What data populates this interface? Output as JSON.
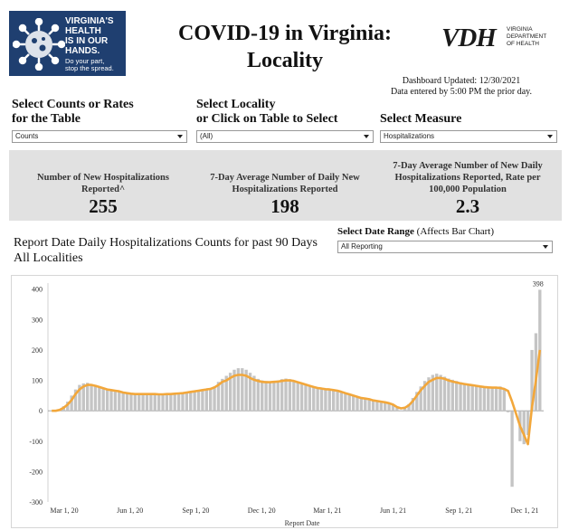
{
  "header": {
    "logo_lines": [
      "VIRGINIA'S",
      "HEALTH",
      "IS IN OUR",
      "HANDS."
    ],
    "logo_sub": [
      "Do your part,",
      "stop the spread."
    ],
    "title_lines": [
      "COVID-19 in Virginia:",
      "Locality"
    ],
    "vdh_mark": "VDH",
    "vdh_dept": [
      "VIRGINIA",
      "DEPARTMENT",
      "OF HEALTH"
    ],
    "updated_line1": "Dashboard Updated: 12/30/2021",
    "updated_line2": "Data entered by 5:00 PM the prior day."
  },
  "controls": {
    "counts_label": [
      "Select Counts or Rates",
      "for the Table"
    ],
    "counts_value": "Counts",
    "locality_label": [
      "Select Locality",
      "or Click on Table to Select"
    ],
    "locality_value": "(All)",
    "measure_label": "Select Measure",
    "measure_value": "Hospitalizations",
    "range_label_bold": "Select Date Range",
    "range_label_rest": " (Affects Bar Chart)",
    "range_value": "All Reporting"
  },
  "kpis": [
    {
      "label": [
        "Number of New Hospitalizations",
        "Reported^"
      ],
      "value": "255"
    },
    {
      "label": [
        "7-Day Average Number of Daily New",
        "Hospitalizations Reported"
      ],
      "value": "198"
    },
    {
      "label": [
        "7-Day Average Number of New Daily",
        "Hospitalizations Reported, Rate per",
        "100,000 Population"
      ],
      "value": "2.3"
    }
  ],
  "chart_title": [
    "Report Date Daily Hospitalizations Counts for past 90 Days",
    "All Localities"
  ],
  "colors": {
    "bars": "#c4c4c4",
    "line": "#f2a73b",
    "kpi_band": "#e1e1e1",
    "logo_bg": "#1f3f70"
  },
  "chart_data": {
    "type": "bar",
    "xlabel": "Report Date",
    "ylabel": "",
    "ylim": [
      -300,
      420
    ],
    "yticks": [
      -300,
      -200,
      -100,
      0,
      100,
      200,
      300,
      400
    ],
    "xticks": [
      "Mar 1, 20",
      "Jun 1, 20",
      "Sep 1, 20",
      "Dec 1, 20",
      "Mar 1, 21",
      "Jun 1, 21",
      "Sep 1, 21",
      "Dec 1, 21"
    ],
    "peak_label": "398",
    "series": [
      {
        "values": [
          0,
          0,
          5,
          15,
          30,
          50,
          70,
          85,
          90,
          92,
          88,
          85,
          80,
          75,
          72,
          70,
          68,
          66,
          60,
          58,
          56,
          55,
          55,
          55,
          55,
          55,
          55,
          54,
          54,
          55,
          55,
          56,
          57,
          58,
          60,
          62,
          65,
          68,
          70,
          72,
          75,
          80,
          95,
          105,
          115,
          125,
          135,
          140,
          140,
          135,
          125,
          115,
          105,
          100,
          98,
          95,
          98,
          100,
          104,
          106,
          104,
          100,
          95,
          90,
          85,
          80,
          77,
          74,
          72,
          70,
          70,
          68,
          66,
          62,
          58,
          54,
          50,
          46,
          42,
          40,
          38,
          34,
          32,
          30,
          28,
          25,
          20,
          10,
          2,
          8,
          22,
          42,
          62,
          80,
          98,
          110,
          118,
          122,
          118,
          112,
          106,
          102,
          98,
          94,
          90,
          88,
          86,
          84,
          82,
          80,
          80,
          78,
          78,
          80,
          70,
          -5,
          -250,
          0,
          -100,
          -110,
          -80,
          200,
          255,
          398
        ]
      },
      {
        "values": [
          0,
          0,
          3,
          10,
          20,
          35,
          55,
          70,
          80,
          85,
          85,
          82,
          78,
          74,
          70,
          68,
          66,
          64,
          60,
          58,
          56,
          55,
          55,
          55,
          55,
          55,
          55,
          54,
          54,
          55,
          55,
          56,
          57,
          58,
          60,
          62,
          64,
          66,
          68,
          70,
          72,
          77,
          85,
          95,
          100,
          108,
          115,
          118,
          118,
          115,
          108,
          102,
          98,
          95,
          94,
          94,
          95,
          96,
          98,
          100,
          100,
          98,
          94,
          90,
          86,
          82,
          78,
          75,
          73,
          71,
          70,
          68,
          66,
          62,
          58,
          54,
          50,
          46,
          42,
          40,
          38,
          34,
          32,
          30,
          28,
          25,
          20,
          12,
          8,
          10,
          18,
          32,
          50,
          68,
          82,
          95,
          102,
          108,
          108,
          105,
          100,
          96,
          93,
          90,
          88,
          86,
          84,
          82,
          80,
          78,
          77,
          76,
          76,
          75,
          72,
          65,
          30,
          -10,
          -50,
          -80,
          -110,
          10,
          100,
          200
        ]
      }
    ]
  }
}
